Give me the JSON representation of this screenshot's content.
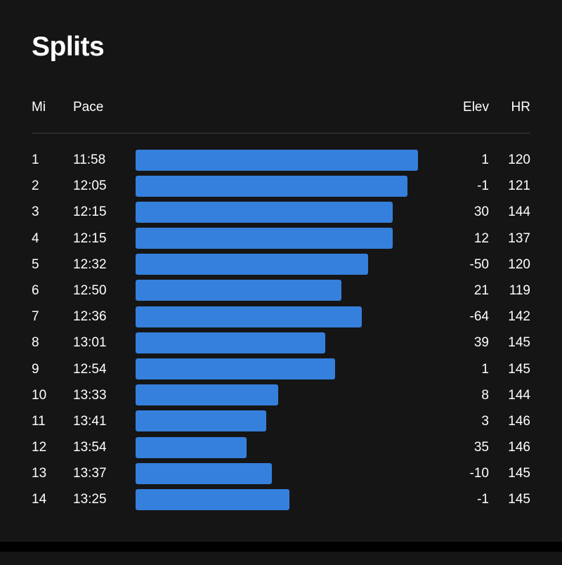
{
  "title": "Splits",
  "columns": {
    "mi": "Mi",
    "pace": "Pace",
    "elev": "Elev",
    "hr": "HR"
  },
  "colors": {
    "bar": "#3580dc",
    "background": "#151515"
  },
  "splits": [
    {
      "mi": "1",
      "pace": "11:58",
      "elev": "1",
      "hr": "120"
    },
    {
      "mi": "2",
      "pace": "12:05",
      "elev": "-1",
      "hr": "121"
    },
    {
      "mi": "3",
      "pace": "12:15",
      "elev": "30",
      "hr": "144"
    },
    {
      "mi": "4",
      "pace": "12:15",
      "elev": "12",
      "hr": "137"
    },
    {
      "mi": "5",
      "pace": "12:32",
      "elev": "-50",
      "hr": "120"
    },
    {
      "mi": "6",
      "pace": "12:50",
      "elev": "21",
      "hr": "119"
    },
    {
      "mi": "7",
      "pace": "12:36",
      "elev": "-64",
      "hr": "142"
    },
    {
      "mi": "8",
      "pace": "13:01",
      "elev": "39",
      "hr": "145"
    },
    {
      "mi": "9",
      "pace": "12:54",
      "elev": "1",
      "hr": "145"
    },
    {
      "mi": "10",
      "pace": "13:33",
      "elev": "8",
      "hr": "144"
    },
    {
      "mi": "11",
      "pace": "13:41",
      "elev": "3",
      "hr": "146"
    },
    {
      "mi": "12",
      "pace": "13:54",
      "elev": "35",
      "hr": "146"
    },
    {
      "mi": "13",
      "pace": "13:37",
      "elev": "-10",
      "hr": "145"
    },
    {
      "mi": "14",
      "pace": "13:25",
      "elev": "-1",
      "hr": "145"
    }
  ]
}
